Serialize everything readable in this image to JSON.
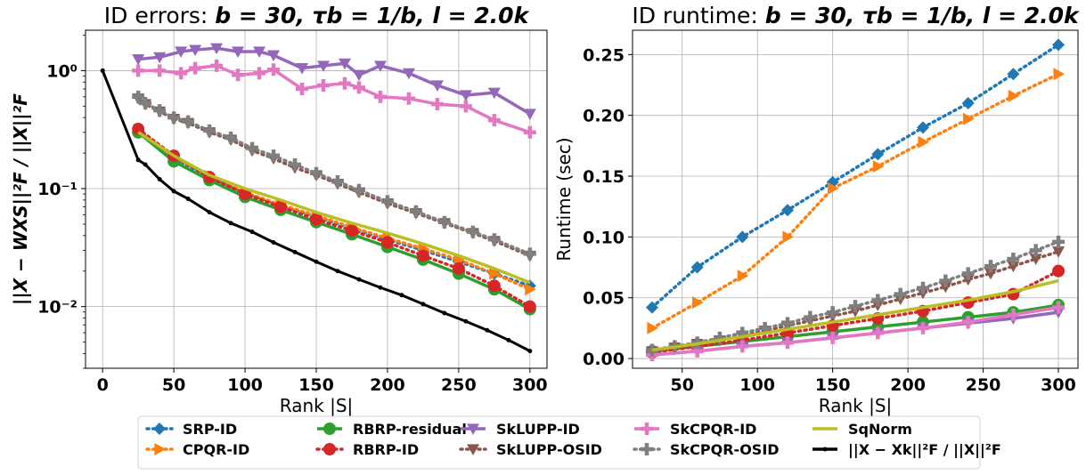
{
  "colors": {
    "SRP-ID": "#1f77b4",
    "CPQR-ID": "#ff7f0e",
    "RBRP-residual": "#2ca02c",
    "RBRP-ID": "#d62728",
    "SkLUPP-ID": "#9467bd",
    "SkLUPP-OSID": "#8c564b",
    "SkCPQR-ID": "#e377c2",
    "SkCPQR-OSID": "#7f7f7f",
    "SqNorm": "#bcbd22",
    "baseline": "#000000"
  },
  "chart_data": [
    {
      "type": "line",
      "id": "errors",
      "title_prefix": "ID errors: ",
      "title_math": "b = 30, τb = 1/b, l = 2.0k",
      "xlabel": "Rank |S|",
      "ylabel": "||X − WXS||²F / ||X||²F",
      "yscale": "log",
      "xlim": [
        -12,
        312
      ],
      "ylim": [
        0.003,
        2.2
      ],
      "xticks": [
        "0",
        "50",
        "100",
        "150",
        "200",
        "250",
        "300"
      ],
      "yticks": [
        "10⁰",
        "10⁻¹",
        "10⁻²"
      ],
      "grid": true,
      "series": [
        {
          "name": "SRP-ID",
          "x": [
            25,
            50,
            75,
            100,
            125,
            150,
            175,
            200,
            225,
            250,
            275,
            300
          ],
          "y": [
            0.305,
            0.18,
            0.126,
            0.092,
            0.072,
            0.058,
            0.046,
            0.037,
            0.03,
            0.024,
            0.019,
            0.015
          ]
        },
        {
          "name": "CPQR-ID",
          "x": [
            25,
            50,
            75,
            100,
            125,
            150,
            175,
            200,
            225,
            250,
            275,
            300
          ],
          "y": [
            0.315,
            0.185,
            0.128,
            0.093,
            0.073,
            0.059,
            0.047,
            0.038,
            0.031,
            0.025,
            0.019,
            0.014
          ]
        },
        {
          "name": "RBRP-residual",
          "x": [
            25,
            50,
            75,
            100,
            125,
            150,
            175,
            200,
            225,
            250,
            275,
            300
          ],
          "y": [
            0.3,
            0.17,
            0.118,
            0.085,
            0.066,
            0.052,
            0.041,
            0.032,
            0.025,
            0.019,
            0.014,
            0.0095
          ]
        },
        {
          "name": "RBRP-ID",
          "x": [
            25,
            50,
            75,
            100,
            125,
            150,
            175,
            200,
            225,
            250,
            275,
            300
          ],
          "y": [
            0.32,
            0.19,
            0.125,
            0.09,
            0.07,
            0.055,
            0.044,
            0.035,
            0.027,
            0.021,
            0.015,
            0.01
          ]
        },
        {
          "name": "SkLUPP-ID",
          "x": [
            25,
            40,
            55,
            65,
            80,
            95,
            110,
            120,
            140,
            155,
            170,
            180,
            195,
            215,
            235,
            255,
            275,
            300
          ],
          "y": [
            1.25,
            1.3,
            1.45,
            1.5,
            1.55,
            1.45,
            1.45,
            1.35,
            1.05,
            1.1,
            1.15,
            0.92,
            1.1,
            0.95,
            0.75,
            0.62,
            0.65,
            0.43
          ]
        },
        {
          "name": "SkLUPP-OSID",
          "x": [
            25,
            30,
            40,
            50,
            60,
            75,
            90,
            105,
            120,
            135,
            150,
            165,
            180,
            200,
            220,
            240,
            260,
            275,
            300
          ],
          "y": [
            0.58,
            0.52,
            0.45,
            0.39,
            0.36,
            0.3,
            0.26,
            0.21,
            0.18,
            0.15,
            0.13,
            0.11,
            0.093,
            0.075,
            0.062,
            0.051,
            0.042,
            0.036,
            0.027
          ]
        },
        {
          "name": "SkCPQR-ID",
          "x": [
            25,
            40,
            55,
            65,
            80,
            95,
            110,
            120,
            140,
            155,
            170,
            180,
            195,
            215,
            235,
            255,
            275,
            300
          ],
          "y": [
            1.0,
            1.0,
            0.95,
            1.05,
            1.1,
            0.92,
            0.95,
            1.02,
            0.7,
            0.75,
            0.78,
            0.72,
            0.6,
            0.58,
            0.52,
            0.5,
            0.38,
            0.3
          ]
        },
        {
          "name": "SkCPQR-OSID",
          "x": [
            25,
            30,
            40,
            50,
            60,
            75,
            90,
            105,
            120,
            135,
            150,
            165,
            180,
            200,
            220,
            240,
            260,
            275,
            300
          ],
          "y": [
            0.6,
            0.53,
            0.46,
            0.4,
            0.37,
            0.31,
            0.27,
            0.22,
            0.19,
            0.16,
            0.135,
            0.115,
            0.097,
            0.078,
            0.064,
            0.052,
            0.043,
            0.037,
            0.028
          ]
        },
        {
          "name": "SqNorm",
          "x": [
            25,
            50,
            75,
            100,
            125,
            150,
            175,
            200,
            225,
            250,
            275,
            300
          ],
          "y": [
            0.3,
            0.19,
            0.13,
            0.1,
            0.08,
            0.063,
            0.051,
            0.042,
            0.034,
            0.027,
            0.021,
            0.016
          ]
        },
        {
          "name": "baseline",
          "x": [
            0,
            25,
            30,
            40,
            50,
            60,
            75,
            90,
            105,
            120,
            135,
            150,
            165,
            180,
            195,
            210,
            225,
            240,
            255,
            270,
            285,
            300
          ],
          "y": [
            1.0,
            0.175,
            0.16,
            0.12,
            0.095,
            0.082,
            0.063,
            0.051,
            0.043,
            0.035,
            0.029,
            0.024,
            0.02,
            0.017,
            0.0145,
            0.0125,
            0.0105,
            0.0088,
            0.0075,
            0.0063,
            0.0052,
            0.0042
          ]
        }
      ]
    },
    {
      "type": "line",
      "id": "runtime",
      "title_prefix": "ID runtime: ",
      "title_math": "b = 30, τb = 1/b, l = 2.0k",
      "xlabel": "Rank |S|",
      "ylabel": "Runtime (sec)",
      "yscale": "linear",
      "xlim": [
        17,
        313
      ],
      "ylim": [
        -0.008,
        0.27
      ],
      "xticks": [
        "50",
        "100",
        "150",
        "200",
        "250",
        "300"
      ],
      "yticks": [
        "0.00",
        "0.05",
        "0.10",
        "0.15",
        "0.20",
        "0.25"
      ],
      "grid": true,
      "series": [
        {
          "name": "SRP-ID",
          "x": [
            30,
            60,
            90,
            120,
            150,
            180,
            210,
            240,
            270,
            300
          ],
          "y": [
            0.042,
            0.075,
            0.1,
            0.122,
            0.145,
            0.168,
            0.19,
            0.21,
            0.234,
            0.258
          ]
        },
        {
          "name": "CPQR-ID",
          "x": [
            30,
            60,
            90,
            120,
            150,
            180,
            210,
            240,
            270,
            300
          ],
          "y": [
            0.025,
            0.046,
            0.068,
            0.1,
            0.14,
            0.158,
            0.178,
            0.197,
            0.216,
            0.234
          ]
        },
        {
          "name": "RBRP-residual",
          "x": [
            30,
            60,
            90,
            120,
            150,
            180,
            210,
            240,
            270,
            300
          ],
          "y": [
            0.006,
            0.01,
            0.014,
            0.018,
            0.022,
            0.026,
            0.03,
            0.034,
            0.038,
            0.044
          ]
        },
        {
          "name": "RBRP-ID",
          "x": [
            30,
            60,
            90,
            120,
            150,
            180,
            210,
            240,
            270,
            300
          ],
          "y": [
            0.005,
            0.01,
            0.015,
            0.021,
            0.027,
            0.033,
            0.039,
            0.046,
            0.053,
            0.072
          ]
        },
        {
          "name": "SkLUPP-ID",
          "x": [
            30,
            60,
            90,
            120,
            150,
            180,
            210,
            240,
            270,
            300
          ],
          "y": [
            0.003,
            0.006,
            0.01,
            0.013,
            0.017,
            0.021,
            0.025,
            0.029,
            0.033,
            0.038
          ]
        },
        {
          "name": "SkLUPP-OSID",
          "x": [
            30,
            45,
            60,
            75,
            90,
            105,
            120,
            135,
            150,
            165,
            180,
            195,
            210,
            225,
            240,
            255,
            270,
            285,
            300
          ],
          "y": [
            0.006,
            0.009,
            0.012,
            0.015,
            0.019,
            0.023,
            0.027,
            0.031,
            0.035,
            0.039,
            0.044,
            0.049,
            0.054,
            0.059,
            0.065,
            0.07,
            0.076,
            0.082,
            0.088
          ]
        },
        {
          "name": "SkCPQR-ID",
          "x": [
            30,
            60,
            90,
            120,
            150,
            180,
            210,
            240,
            270,
            300
          ],
          "y": [
            0.003,
            0.006,
            0.01,
            0.013,
            0.017,
            0.021,
            0.025,
            0.03,
            0.036,
            0.042
          ]
        },
        {
          "name": "SkCPQR-OSID",
          "x": [
            30,
            45,
            60,
            75,
            90,
            105,
            120,
            135,
            150,
            165,
            180,
            195,
            210,
            225,
            240,
            255,
            270,
            285,
            300
          ],
          "y": [
            0.007,
            0.01,
            0.013,
            0.017,
            0.021,
            0.025,
            0.029,
            0.034,
            0.038,
            0.043,
            0.048,
            0.053,
            0.058,
            0.064,
            0.07,
            0.076,
            0.082,
            0.089,
            0.096
          ]
        },
        {
          "name": "SqNorm",
          "x": [
            30,
            60,
            90,
            120,
            150,
            180,
            210,
            240,
            270,
            300
          ],
          "y": [
            0.007,
            0.012,
            0.018,
            0.024,
            0.03,
            0.036,
            0.042,
            0.048,
            0.055,
            0.064
          ]
        }
      ]
    }
  ],
  "legend": {
    "position": "bottom-center",
    "entries": [
      {
        "key": "SRP-ID",
        "label": "SRP-ID",
        "style": "dotted",
        "marker": "diamond"
      },
      {
        "key": "CPQR-ID",
        "label": "CPQR-ID",
        "style": "dotted",
        "marker": "triangle-right"
      },
      {
        "key": "RBRP-residual",
        "label": "RBRP-residual",
        "style": "solid",
        "marker": "circle"
      },
      {
        "key": "RBRP-ID",
        "label": "RBRP-ID",
        "style": "dotted",
        "marker": "circle"
      },
      {
        "key": "SkLUPP-ID",
        "label": "SkLUPP-ID",
        "style": "solid",
        "marker": "triangle-down"
      },
      {
        "key": "SkLUPP-OSID",
        "label": "SkLUPP-OSID",
        "style": "dotted",
        "marker": "triangle-down"
      },
      {
        "key": "SkCPQR-ID",
        "label": "SkCPQR-ID",
        "style": "solid",
        "marker": "plus"
      },
      {
        "key": "SkCPQR-OSID",
        "label": "SkCPQR-OSID",
        "style": "dotted",
        "marker": "plus"
      },
      {
        "key": "SqNorm",
        "label": "SqNorm",
        "style": "solid",
        "marker": "none"
      },
      {
        "key": "baseline",
        "label": "||X − Xk||²F / ||X||²F",
        "style": "solid",
        "marker": "dot"
      }
    ]
  }
}
